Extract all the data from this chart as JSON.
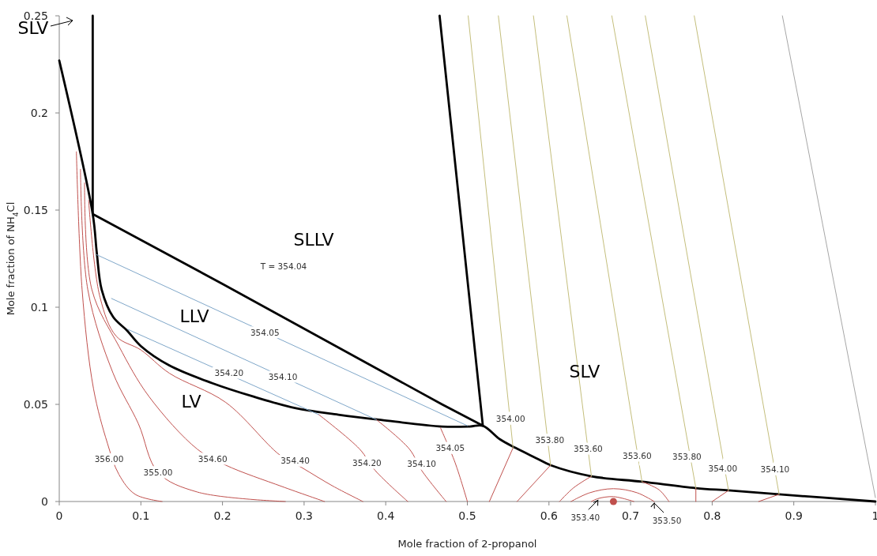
{
  "chart_data": {
    "type": "line",
    "xlabel": "Mole fraction of 2-propanol",
    "ylabel": "Mole fraction of NH$_{4}$Cl",
    "xlim": [
      0,
      1
    ],
    "ylim": [
      0,
      0.25
    ],
    "xticks": [
      0,
      0.1,
      0.2,
      0.3,
      0.4,
      0.5,
      0.6,
      0.7,
      0.8,
      0.9,
      1
    ],
    "yticks": [
      0,
      0.05,
      0.1,
      0.15,
      0.2,
      0.25
    ],
    "grid": false,
    "marker": "none",
    "line_style": "solid",
    "series": [
      {
        "color": "#000000",
        "x": [
          0,
          0.041,
          0.046,
          0.052,
          0.066,
          0.083,
          0.1,
          0.135,
          0.187,
          0.238,
          0.29,
          0.342,
          0.394,
          0.469,
          0.503,
          0.519,
          0.54,
          0.559,
          0.584,
          0.602,
          0.652,
          0.714,
          0.78,
          0.82,
          0.882,
          1
        ],
        "values": [
          0.227,
          0.148,
          0.128,
          0.109,
          0.095,
          0.088,
          0.08,
          0.07,
          0.061,
          0.054,
          0.048,
          0.0447,
          0.042,
          0.0386,
          0.0386,
          0.039,
          0.032,
          0.0276,
          0.0224,
          0.0187,
          0.013,
          0.0102,
          0.0069,
          0.0057,
          0.0037,
          0
        ]
      },
      {
        "color": "#000000",
        "x": [
          0.041,
          0.041,
          0.2,
          0.469,
          0.519,
          0.466
        ],
        "values": [
          0.25,
          0.148,
          0.112,
          0.05,
          0.039,
          0.25
        ]
      },
      {
        "color": "#7fa7c9",
        "x": [
          0.046,
          0.5
        ],
        "values": [
          0.127,
          0.039
        ]
      },
      {
        "color": "#7fa7c9",
        "x": [
          0.064,
          0.389
        ],
        "values": [
          0.1045,
          0.042
        ]
      },
      {
        "color": "#7fa7c9",
        "x": [
          0.084,
          0.318
        ],
        "values": [
          0.0886,
          0.0447
        ]
      },
      {
        "color": "#c0504d",
        "x": [
          0.021,
          0.028,
          0.042,
          0.059,
          0.073,
          0.093,
          0.126
        ],
        "values": [
          0.18,
          0.109,
          0.058,
          0.03,
          0.014,
          0.0037,
          0
        ]
      },
      {
        "color": "#c0504d",
        "x": [
          0.026,
          0.035,
          0.066,
          0.097,
          0.121,
          0.169,
          0.277
        ],
        "values": [
          0.171,
          0.109,
          0.066,
          0.04,
          0.015,
          0.0049,
          0
        ]
      },
      {
        "color": "#c0504d",
        "x": [
          0.031,
          0.04,
          0.073,
          0.11,
          0.169,
          0.204,
          0.273,
          0.325
        ],
        "values": [
          0.164,
          0.109,
          0.08,
          0.054,
          0.027,
          0.0187,
          0.0077,
          0
        ]
      },
      {
        "color": "#c0504d",
        "x": [
          0.036,
          0.05,
          0.07,
          0.1,
          0.135,
          0.204,
          0.27,
          0.297,
          0.335,
          0.372
        ],
        "values": [
          0.155,
          0.105,
          0.085,
          0.078,
          0.066,
          0.051,
          0.024,
          0.0175,
          0.008,
          0
        ]
      },
      {
        "color": "#c0504d",
        "x": [
          0.318,
          0.368,
          0.387,
          0.427
        ],
        "values": [
          0.0447,
          0.027,
          0.016,
          0
        ]
      },
      {
        "color": "#c0504d",
        "x": [
          0.389,
          0.429,
          0.444,
          0.474
        ],
        "values": [
          0.042,
          0.027,
          0.016,
          0
        ]
      },
      {
        "color": "#c0504d",
        "x": [
          0.467,
          0.485,
          0.5
        ],
        "values": [
          0.038,
          0.02,
          0
        ]
      },
      {
        "color": "#c0504d",
        "x": [
          0.556,
          0.527
        ],
        "values": [
          0.0276,
          0
        ]
      },
      {
        "color": "#c0504d",
        "x": [
          0.602,
          0.561
        ],
        "values": [
          0.0187,
          0
        ]
      },
      {
        "color": "#c0504d",
        "x": [
          0.652,
          0.63,
          0.613
        ],
        "values": [
          0.013,
          0.007,
          0
        ]
      },
      {
        "color": "#c0504d",
        "x": [
          0.714,
          0.735,
          0.747
        ],
        "values": [
          0.0102,
          0.006,
          0
        ]
      },
      {
        "color": "#c0504d",
        "x": [
          0.627,
          0.65,
          0.679,
          0.708,
          0.729
        ],
        "values": [
          0,
          0.0045,
          0.0066,
          0.0045,
          0
        ]
      },
      {
        "color": "#c0504d",
        "x": [
          0.652,
          0.66,
          0.679,
          0.704
        ],
        "values": [
          0,
          0.0015,
          0.0025,
          0
        ]
      },
      {
        "color": "#c0504d",
        "x": [
          0.78,
          0.78
        ],
        "values": [
          0.0069,
          0
        ]
      },
      {
        "color": "#c0504d",
        "x": [
          0.82,
          0.8
        ],
        "values": [
          0.0057,
          0
        ]
      },
      {
        "color": "#c0504d",
        "x": [
          0.882,
          0.857
        ],
        "values": [
          0.0037,
          0
        ]
      },
      {
        "color": "#c4be7c",
        "x": [
          0.556,
          0.501
        ],
        "values": [
          0.0276,
          0.25
        ]
      },
      {
        "color": "#c4be7c",
        "x": [
          0.602,
          0.538
        ],
        "values": [
          0.0187,
          0.25
        ]
      },
      {
        "color": "#c4be7c",
        "x": [
          0.652,
          0.581
        ],
        "values": [
          0.013,
          0.25
        ]
      },
      {
        "color": "#c4be7c",
        "x": [
          0.714,
          0.622
        ],
        "values": [
          0.0102,
          0.25
        ]
      },
      {
        "color": "#c4be7c",
        "x": [
          0.78,
          0.677
        ],
        "values": [
          0.0069,
          0.25
        ]
      },
      {
        "color": "#c4be7c",
        "x": [
          0.82,
          0.718
        ],
        "values": [
          0.0057,
          0.25
        ]
      },
      {
        "color": "#c4be7c",
        "x": [
          0.882,
          0.778
        ],
        "values": [
          0.0037,
          0.25
        ]
      },
      {
        "color": "#a6a6a6",
        "x": [
          1,
          0.886
        ],
        "values": [
          0.002,
          0.25
        ]
      },
      {
        "type": "scatter",
        "marker": "circle",
        "color": "#c0504d",
        "x": [
          0.679
        ],
        "values": [
          0
        ]
      }
    ],
    "annotations": [
      "SLLV",
      "T = 354.04",
      "LLV",
      "LV",
      "SLV",
      "SLV",
      {
        "text": "356.00",
        "x": 0.061,
        "y": 0.022
      },
      {
        "text": "355.00",
        "x": 0.121,
        "y": 0.015
      },
      {
        "text": "354.60",
        "x": 0.188,
        "y": 0.022
      },
      {
        "text": "354.40",
        "x": 0.289,
        "y": 0.021
      },
      {
        "text": "354.20",
        "x": 0.377,
        "y": 0.02
      },
      {
        "text": "354.10",
        "x": 0.444,
        "y": 0.0195
      },
      {
        "text": "354.05",
        "x": 0.479,
        "y": 0.0276
      },
      {
        "text": "354.05",
        "x": 0.252,
        "y": 0.0871
      },
      {
        "text": "354.20",
        "x": 0.208,
        "y": 0.0663
      },
      {
        "text": "354.10",
        "x": 0.274,
        "y": 0.0642
      },
      {
        "text": "354.00",
        "x": 0.553,
        "y": 0.0427
      },
      {
        "text": "353.80",
        "x": 0.601,
        "y": 0.0317
      },
      {
        "text": "353.60",
        "x": 0.648,
        "y": 0.0272
      },
      {
        "text": "353.60",
        "x": 0.708,
        "y": 0.0236
      },
      {
        "text": "353.80",
        "x": 0.769,
        "y": 0.0232
      },
      {
        "text": "354.00",
        "x": 0.813,
        "y": 0.0171
      },
      {
        "text": "354.10",
        "x": 0.877,
        "y": 0.0167
      },
      {
        "text": "353.40",
        "x": 0.66,
        "y": 0.0015
      },
      {
        "text": "353.50",
        "x": 0.729,
        "y": 0
      }
    ]
  }
}
